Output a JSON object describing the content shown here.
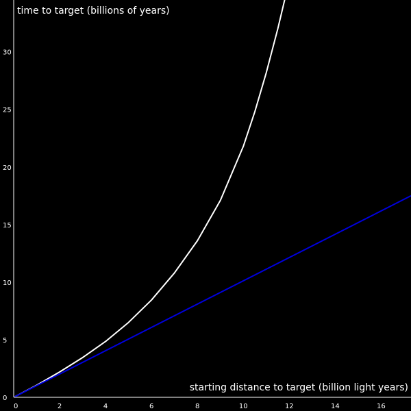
{
  "chart_data": {
    "type": "line",
    "title": "",
    "xlabel": "starting distance to target (billion light years)",
    "ylabel": "time to target (billions of years)",
    "xlim": [
      0,
      17.3
    ],
    "ylim": [
      0,
      34.5
    ],
    "xticks": [
      0,
      2,
      4,
      6,
      8,
      10,
      12,
      14,
      16
    ],
    "yticks": [
      0,
      5,
      10,
      15,
      20,
      25,
      30
    ],
    "grid": false,
    "legend": "none",
    "colors": {
      "background": "#000000",
      "axis": "#aaaaaa",
      "text": "#ffffff"
    },
    "series": [
      {
        "color": "#ffffff",
        "x": [
          0,
          1,
          2,
          3,
          4,
          5,
          6,
          7,
          8,
          9,
          10,
          10.5,
          11,
          11.5,
          12,
          12.06
        ],
        "y": [
          0,
          1.05,
          2.2,
          3.45,
          4.85,
          6.5,
          8.45,
          10.8,
          13.6,
          17.1,
          21.8,
          24.8,
          28.2,
          32.0,
          36.2,
          36.8
        ]
      },
      {
        "color": "#0000dd",
        "x": [
          0,
          17.3
        ],
        "y": [
          0,
          17.5
        ]
      }
    ]
  }
}
